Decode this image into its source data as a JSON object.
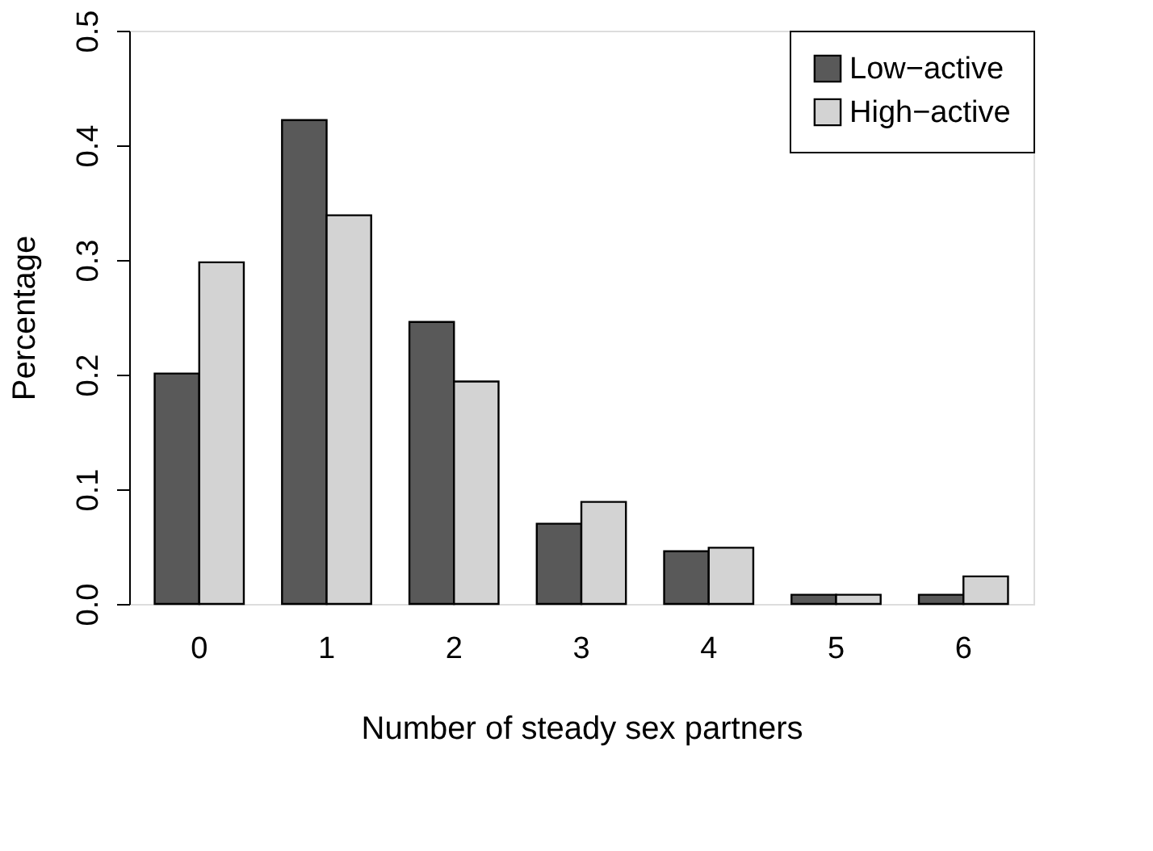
{
  "chart_data": {
    "type": "bar",
    "xlabel": "Number of steady sex partners",
    "ylabel": "Percentage",
    "categories": [
      "0",
      "1",
      "2",
      "3",
      "4",
      "5",
      "6"
    ],
    "series": [
      {
        "name": "Low−active",
        "color": "#595959",
        "values": [
          0.201,
          0.422,
          0.246,
          0.07,
          0.046,
          0.008,
          0.008
        ]
      },
      {
        "name": "High−active",
        "color": "#d3d3d3",
        "values": [
          0.298,
          0.339,
          0.194,
          0.089,
          0.049,
          0.008,
          0.024
        ]
      }
    ],
    "ylim": [
      0,
      0.5
    ],
    "yticks": [
      {
        "value": 0,
        "label": "0.0"
      },
      0.1,
      0.2,
      0.3,
      0.4,
      0.5
    ],
    "grid": false,
    "legend": "top right"
  }
}
